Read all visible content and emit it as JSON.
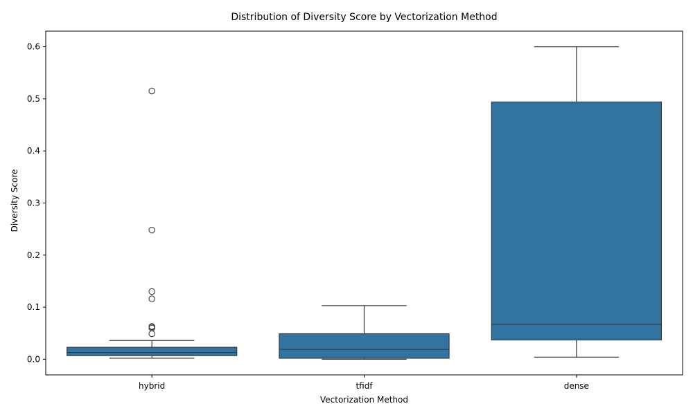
{
  "chart_data": {
    "type": "box",
    "title": "Distribution of Diversity Score by Vectorization Method",
    "xlabel": "Vectorization Method",
    "ylabel": "Diversity Score",
    "ylim": [
      -0.03,
      0.63
    ],
    "yticks": [
      0.0,
      0.1,
      0.2,
      0.3,
      0.4,
      0.5,
      0.6
    ],
    "ytick_labels": [
      "0.0",
      "0.1",
      "0.2",
      "0.3",
      "0.4",
      "0.5",
      "0.6"
    ],
    "categories": [
      "hybrid",
      "tfidf",
      "dense"
    ],
    "grid": false,
    "box_color": "#3274a1",
    "line_color": "#3d3d3d",
    "boxes": [
      {
        "category": "hybrid",
        "whisker_low": 0.002,
        "q1": 0.007,
        "median": 0.013,
        "q3": 0.023,
        "whisker_high": 0.036,
        "outliers": [
          0.049,
          0.06,
          0.062,
          0.063,
          0.116,
          0.13,
          0.248,
          0.515
        ]
      },
      {
        "category": "tfidf",
        "whisker_low": 0.0,
        "q1": 0.002,
        "median": 0.019,
        "q3": 0.049,
        "whisker_high": 0.103,
        "outliers": []
      },
      {
        "category": "dense",
        "whisker_low": 0.004,
        "q1": 0.037,
        "median": 0.067,
        "q3": 0.494,
        "whisker_high": 0.6,
        "outliers": []
      }
    ]
  }
}
